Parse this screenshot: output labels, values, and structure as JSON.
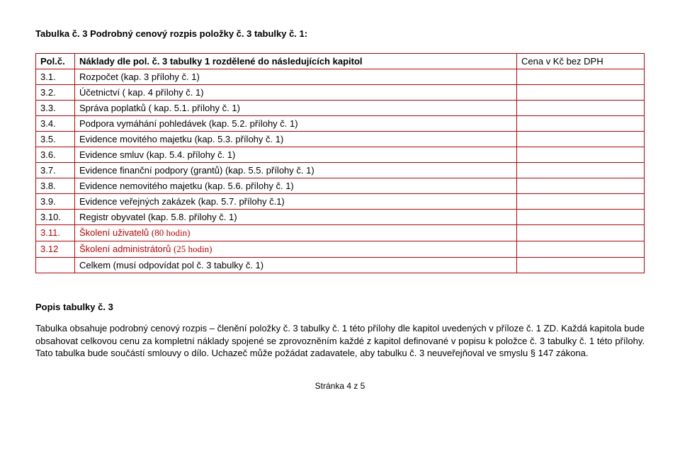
{
  "title": "Tabulka č. 3 Podrobný cenový rozpis položky č. 3 tabulky č. 1:",
  "headers": {
    "num": "Pol.č.",
    "desc": "Náklady dle pol. č. 3 tabulky 1 rozdělené do následujících kapitol",
    "price": "Cena v Kč bez DPH"
  },
  "rows": [
    {
      "num": "3.1.",
      "desc": "Rozpočet (kap. 3 přílohy č. 1)"
    },
    {
      "num": "3.2.",
      "desc": "Účetnictví ( kap. 4 přílohy č. 1)"
    },
    {
      "num": "3.3.",
      "desc": "Správa poplatků ( kap. 5.1. přílohy č. 1)"
    },
    {
      "num": "3.4.",
      "desc": "Podpora vymáhání pohledávek (kap. 5.2. přílohy č. 1)"
    },
    {
      "num": "3.5.",
      "desc": "Evidence movitého majetku (kap. 5.3. přílohy č. 1)"
    },
    {
      "num": "3.6.",
      "desc": "Evidence smluv (kap. 5.4. přílohy č. 1)"
    },
    {
      "num": "3.7.",
      "desc": "Evidence finanční podpory (grantů) (kap. 5.5. přílohy č. 1)"
    },
    {
      "num": "3.8.",
      "desc": "Evidence nemovitého majetku (kap. 5.6. přílohy č. 1)"
    },
    {
      "num": "3.9.",
      "desc": "Evidence veřejných zakázek (kap. 5.7. přílohy č.1)"
    },
    {
      "num": "3.10.",
      "desc": "Registr obyvatel (kap. 5.8. přílohy č. 1)"
    }
  ],
  "redRows": [
    {
      "num": "3.11.",
      "desc_prefix": "Školení uživatelů ",
      "desc_serif": "(80 hodin)"
    },
    {
      "num": "3.12",
      "desc_prefix": "Školení administrátorů ",
      "desc_serif": "(25 hodin)"
    }
  ],
  "totalRow": {
    "num": "",
    "desc": "Celkem (musí odpovídat pol č. 3 tabulky č. 1)"
  },
  "popis": {
    "heading": "Popis tabulky č. 3",
    "body": "Tabulka obsahuje podrobný cenový rozpis – členění položky č. 3 tabulky č. 1 této přílohy dle kapitol uvedených v příloze č. 1 ZD. Každá kapitola bude obsahovat celkovou cenu za kompletní náklady spojené se zprovozněním každé z kapitol definované v popisu k položce č. 3 tabulky č. 1 této přílohy. Tato tabulka bude součástí smlouvy o dílo. Uchazeč může požádat zadavatele, aby tabulku č. 3 neuveřejňoval ve smyslu § 147 zákona."
  },
  "footer": "Stránka 4 z 5"
}
